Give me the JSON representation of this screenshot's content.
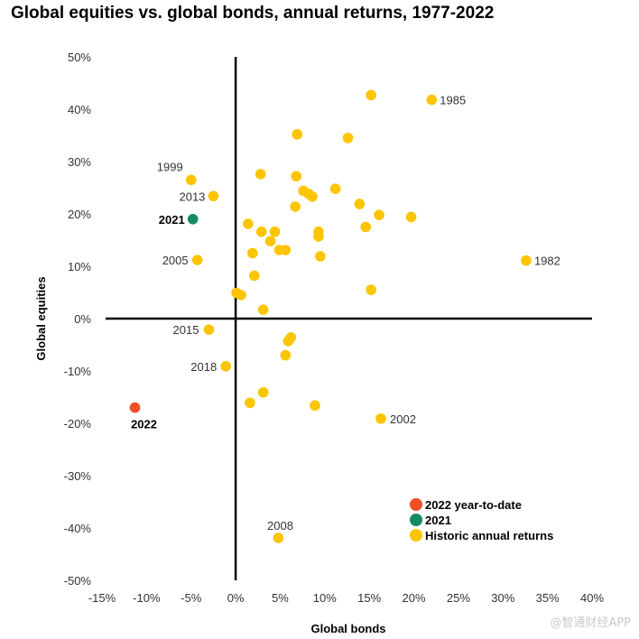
{
  "chart_data": {
    "type": "scatter",
    "title": "Global equities vs. global bonds, annual returns, 1977-2022",
    "xlabel": "Global bonds",
    "ylabel": "Global equities",
    "xlim": [
      -15,
      40
    ],
    "ylim": [
      -50,
      50
    ],
    "x_ticks": [
      -15,
      -10,
      -5,
      0,
      5,
      10,
      15,
      20,
      25,
      30,
      35,
      40
    ],
    "y_ticks": [
      50,
      40,
      30,
      20,
      10,
      0,
      -10,
      -20,
      -30,
      -40,
      -50
    ],
    "x_tick_labels": [
      "-15%",
      "-10%",
      "-5%",
      "0%",
      "5%",
      "10%",
      "15%",
      "20%",
      "25%",
      "30%",
      "35%",
      "40%"
    ],
    "y_tick_labels": [
      "50%",
      "40%",
      "30%",
      "20%",
      "10%",
      "0%",
      "-10%",
      "-20%",
      "-30%",
      "-40%",
      "-50%"
    ],
    "colors": {
      "historic": "#fcc500",
      "ytd2022": "#f04e23",
      "y2021": "#138a64",
      "axis": "#000000"
    },
    "series": [
      {
        "name": "Historic annual returns",
        "color": "#fcc500",
        "points": [
          {
            "x": 15.2,
            "y": 42.7,
            "label": ""
          },
          {
            "x": 22.0,
            "y": 41.8,
            "label": "1985"
          },
          {
            "x": 6.9,
            "y": 35.2,
            "label": ""
          },
          {
            "x": 12.6,
            "y": 34.5,
            "label": ""
          },
          {
            "x": 2.8,
            "y": 27.6,
            "label": ""
          },
          {
            "x": 6.8,
            "y": 27.2,
            "label": ""
          },
          {
            "x": -5.0,
            "y": 26.5,
            "label": "1999"
          },
          {
            "x": 11.2,
            "y": 24.8,
            "label": ""
          },
          {
            "x": 7.6,
            "y": 24.4,
            "label": ""
          },
          {
            "x": 8.2,
            "y": 23.8,
            "label": ""
          },
          {
            "x": 8.6,
            "y": 23.3,
            "label": ""
          },
          {
            "x": -2.5,
            "y": 23.4,
            "label": "2013"
          },
          {
            "x": 6.7,
            "y": 21.4,
            "label": ""
          },
          {
            "x": 13.9,
            "y": 21.9,
            "label": ""
          },
          {
            "x": 16.1,
            "y": 19.8,
            "label": ""
          },
          {
            "x": 19.7,
            "y": 19.4,
            "label": ""
          },
          {
            "x": 1.4,
            "y": 18.1,
            "label": ""
          },
          {
            "x": 14.6,
            "y": 17.5,
            "label": ""
          },
          {
            "x": 2.9,
            "y": 16.6,
            "label": ""
          },
          {
            "x": 4.4,
            "y": 16.6,
            "label": ""
          },
          {
            "x": 9.3,
            "y": 16.6,
            "label": ""
          },
          {
            "x": 9.3,
            "y": 15.7,
            "label": ""
          },
          {
            "x": 3.9,
            "y": 14.8,
            "label": ""
          },
          {
            "x": 4.9,
            "y": 13.1,
            "label": ""
          },
          {
            "x": 5.6,
            "y": 13.1,
            "label": ""
          },
          {
            "x": 1.9,
            "y": 12.5,
            "label": ""
          },
          {
            "x": 9.5,
            "y": 11.9,
            "label": ""
          },
          {
            "x": 32.6,
            "y": 11.1,
            "label": "1982"
          },
          {
            "x": -4.3,
            "y": 11.2,
            "label": "2005"
          },
          {
            "x": 2.1,
            "y": 8.2,
            "label": ""
          },
          {
            "x": 15.2,
            "y": 5.5,
            "label": ""
          },
          {
            "x": 0.1,
            "y": 4.9,
            "label": ""
          },
          {
            "x": 0.6,
            "y": 4.5,
            "label": ""
          },
          {
            "x": 3.1,
            "y": 1.7,
            "label": ""
          },
          {
            "x": -3.0,
            "y": -2.1,
            "label": "2015"
          },
          {
            "x": 6.2,
            "y": -3.6,
            "label": ""
          },
          {
            "x": 5.9,
            "y": -4.3,
            "label": ""
          },
          {
            "x": 5.6,
            "y": -7.0,
            "label": ""
          },
          {
            "x": -1.1,
            "y": -9.1,
            "label": "2018"
          },
          {
            "x": 3.1,
            "y": -14.1,
            "label": ""
          },
          {
            "x": 1.6,
            "y": -16.1,
            "label": ""
          },
          {
            "x": 8.9,
            "y": -16.6,
            "label": ""
          },
          {
            "x": 16.3,
            "y": -19.1,
            "label": "2002"
          },
          {
            "x": 4.8,
            "y": -41.9,
            "label": "2008"
          }
        ]
      },
      {
        "name": "2021",
        "color": "#138a64",
        "points": [
          {
            "x": -4.8,
            "y": 19.0,
            "label": "2021"
          }
        ]
      },
      {
        "name": "2022 year-to-date",
        "color": "#f04e23",
        "points": [
          {
            "x": -11.3,
            "y": -17.0,
            "label": "2022"
          }
        ]
      }
    ],
    "legend": {
      "position": "bottom-right",
      "entries": [
        {
          "label": "2022 year-to-date",
          "color": "#f04e23"
        },
        {
          "label": "2021",
          "color": "#138a64"
        },
        {
          "label": "Historic annual returns",
          "color": "#fcc500"
        }
      ]
    }
  },
  "watermark": "@智通财经APP"
}
